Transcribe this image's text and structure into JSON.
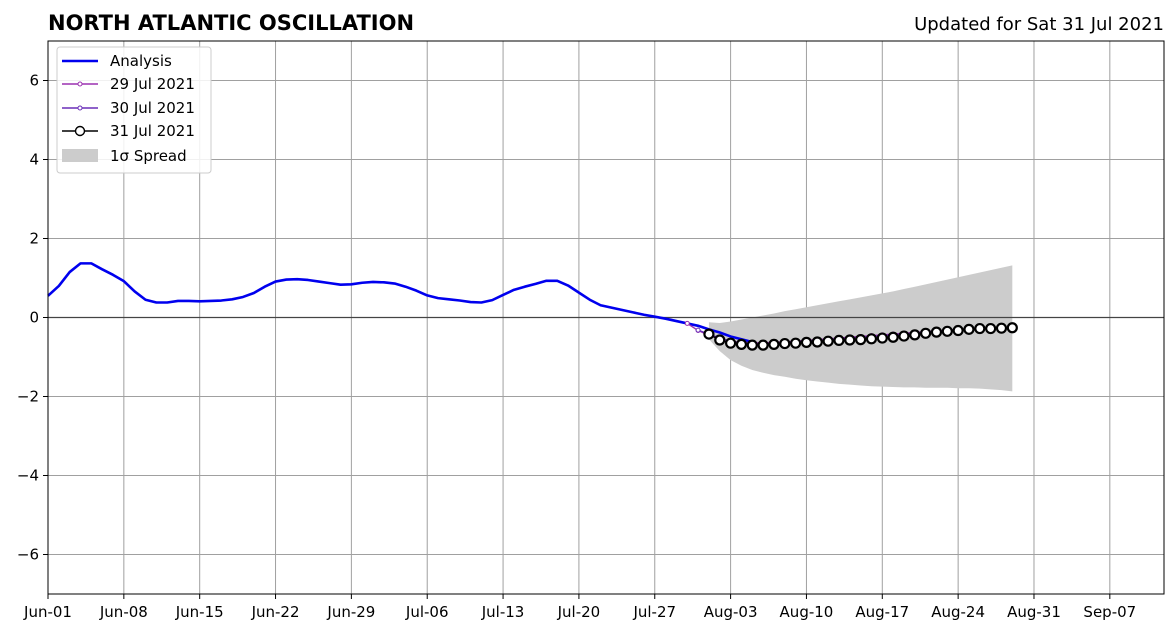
{
  "chart_data": {
    "type": "line",
    "title": "NORTH ATLANTIC OSCILLATION",
    "subtitle": "Updated for Sat 31 Jul 2021",
    "xlabel": "",
    "ylabel": "",
    "x_ticks": [
      "Jun-01",
      "Jun-08",
      "Jun-15",
      "Jun-22",
      "Jun-29",
      "Jul-06",
      "Jul-13",
      "Jul-20",
      "Jul-27",
      "Aug-03",
      "Aug-10",
      "Aug-17",
      "Aug-24",
      "Aug-31",
      "Sep-07"
    ],
    "y_ticks": [
      6,
      4,
      2,
      0,
      -2,
      -4,
      -6
    ],
    "y_tick_labels": [
      "6",
      "4",
      "2",
      "0",
      "−2",
      "−4",
      "−6"
    ],
    "xlim": [
      0,
      103
    ],
    "ylim": [
      -7,
      7
    ],
    "grid": true,
    "legend_position": "top-left",
    "colors": {
      "analysis": "#0000ee",
      "jul29": "#9b30b0",
      "jul30": "#6a2fb8",
      "jul31": "#000000",
      "spread": "#cccccc"
    },
    "series": [
      {
        "name": "Analysis",
        "x": [
          0,
          1,
          2,
          3,
          4,
          5,
          6,
          7,
          8,
          9,
          10,
          11,
          12,
          13,
          14,
          15,
          16,
          17,
          18,
          19,
          20,
          21,
          22,
          23,
          24,
          25,
          26,
          27,
          28,
          29,
          30,
          31,
          32,
          33,
          34,
          35,
          36,
          37,
          38,
          39,
          40,
          41,
          42,
          43,
          44,
          45,
          46,
          47,
          48,
          49,
          50,
          51,
          52,
          53,
          54,
          55,
          56,
          57,
          58,
          59,
          60,
          61,
          62,
          63,
          64,
          65
        ],
        "y": [
          0.55,
          0.8,
          1.15,
          1.37,
          1.37,
          1.22,
          1.08,
          0.92,
          0.66,
          0.45,
          0.38,
          0.38,
          0.42,
          0.42,
          0.41,
          0.42,
          0.43,
          0.46,
          0.52,
          0.62,
          0.78,
          0.91,
          0.96,
          0.97,
          0.95,
          0.91,
          0.87,
          0.83,
          0.84,
          0.88,
          0.9,
          0.89,
          0.86,
          0.78,
          0.68,
          0.56,
          0.49,
          0.46,
          0.43,
          0.39,
          0.38,
          0.44,
          0.57,
          0.7,
          0.78,
          0.85,
          0.93,
          0.93,
          0.81,
          0.63,
          0.45,
          0.31,
          0.25,
          0.19,
          0.13,
          0.07,
          0.02,
          -0.03,
          -0.09,
          -0.15,
          -0.21,
          -0.3,
          -0.38,
          -0.48,
          -0.55,
          -0.62
        ]
      },
      {
        "name": "29 Jul 2021",
        "x": [
          59,
          60,
          61,
          62,
          63,
          64,
          65,
          66,
          67,
          68,
          69,
          70,
          71,
          72,
          73,
          74,
          75,
          76,
          77,
          78,
          79,
          80,
          81,
          82,
          83,
          84,
          85,
          86,
          87
        ],
        "y": [
          -0.15,
          -0.33,
          -0.45,
          -0.55,
          -0.6,
          -0.63,
          -0.64,
          -0.64,
          -0.63,
          -0.62,
          -0.6,
          -0.58,
          -0.56,
          -0.54,
          -0.52,
          -0.5,
          -0.48,
          -0.46,
          -0.44,
          -0.42,
          -0.4,
          -0.38,
          -0.36,
          -0.34,
          -0.32,
          -0.3,
          -0.28,
          -0.27,
          -0.26
        ]
      },
      {
        "name": "30 Jul 2021",
        "x": [
          60,
          61,
          62,
          63,
          64,
          65,
          66,
          67,
          68,
          69,
          70,
          71,
          72,
          73,
          74,
          75,
          76,
          77,
          78,
          79,
          80,
          81,
          82,
          83,
          84,
          85,
          86,
          87,
          88
        ],
        "y": [
          -0.32,
          -0.42,
          -0.52,
          -0.6,
          -0.65,
          -0.67,
          -0.67,
          -0.66,
          -0.64,
          -0.62,
          -0.6,
          -0.58,
          -0.56,
          -0.54,
          -0.52,
          -0.5,
          -0.48,
          -0.46,
          -0.44,
          -0.42,
          -0.4,
          -0.38,
          -0.36,
          -0.34,
          -0.32,
          -0.3,
          -0.28,
          -0.27,
          -0.26
        ]
      },
      {
        "name": "31 Jul 2021",
        "x": [
          61,
          62,
          63,
          64,
          65,
          66,
          67,
          68,
          69,
          70,
          71,
          72,
          73,
          74,
          75,
          76,
          77,
          78,
          79,
          80,
          81,
          82,
          83,
          84,
          85,
          86,
          87,
          88,
          89
        ],
        "y": [
          -0.42,
          -0.57,
          -0.65,
          -0.68,
          -0.7,
          -0.7,
          -0.68,
          -0.66,
          -0.65,
          -0.63,
          -0.62,
          -0.6,
          -0.58,
          -0.57,
          -0.56,
          -0.54,
          -0.52,
          -0.5,
          -0.47,
          -0.44,
          -0.4,
          -0.37,
          -0.35,
          -0.33,
          -0.3,
          -0.28,
          -0.28,
          -0.27,
          -0.26
        ]
      }
    ],
    "spread": {
      "name": "1σ Spread",
      "x": [
        61,
        62,
        63,
        64,
        65,
        66,
        67,
        68,
        69,
        70,
        71,
        72,
        73,
        74,
        75,
        76,
        77,
        78,
        79,
        80,
        81,
        82,
        83,
        84,
        85,
        86,
        87,
        88,
        89
      ],
      "upper": [
        -0.12,
        -0.14,
        -0.1,
        -0.05,
        0.0,
        0.05,
        0.1,
        0.16,
        0.21,
        0.26,
        0.31,
        0.36,
        0.41,
        0.46,
        0.51,
        0.56,
        0.61,
        0.66,
        0.72,
        0.78,
        0.84,
        0.9,
        0.96,
        1.02,
        1.08,
        1.14,
        1.2,
        1.26,
        1.32
      ],
      "lower": [
        -0.55,
        -0.85,
        -1.08,
        -1.22,
        -1.33,
        -1.4,
        -1.46,
        -1.5,
        -1.55,
        -1.59,
        -1.62,
        -1.65,
        -1.68,
        -1.7,
        -1.72,
        -1.74,
        -1.75,
        -1.76,
        -1.77,
        -1.77,
        -1.78,
        -1.78,
        -1.78,
        -1.79,
        -1.79,
        -1.8,
        -1.82,
        -1.84,
        -1.87
      ]
    }
  }
}
